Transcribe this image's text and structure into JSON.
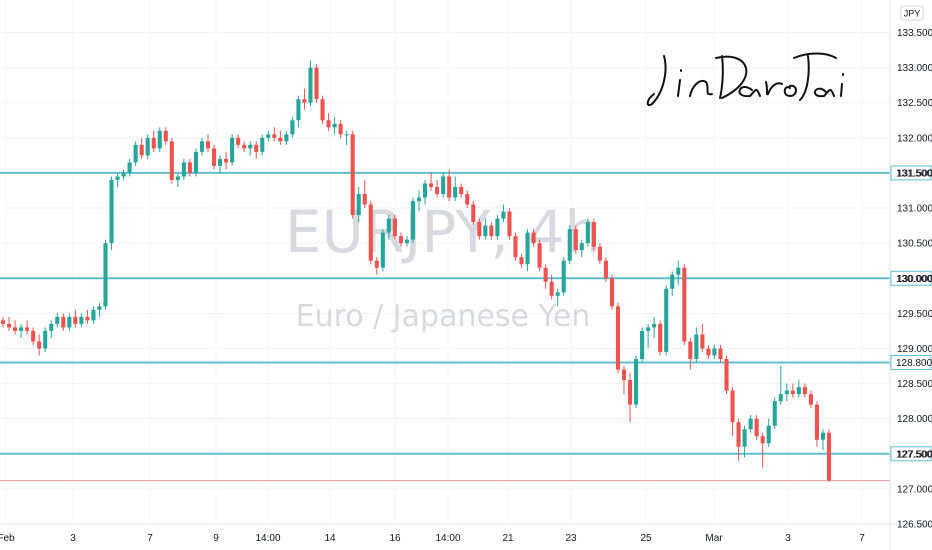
{
  "chart_data": {
    "type": "candlestick",
    "watermark_symbol": "EURJPY, 4h",
    "watermark_name": "Euro / Japanese Yen",
    "signature": "JinDao Tai",
    "currency": "JPY",
    "ylim": [
      126.5,
      133.55
    ],
    "y_ticks": [
      "133.500",
      "133.000",
      "132.500",
      "132.000",
      "131.500",
      "131.000",
      "130.500",
      "130.000",
      "129.500",
      "129.000",
      "128.500",
      "128.000",
      "127.500",
      "127.000",
      "126.500"
    ],
    "x_ticks": [
      "Feb",
      "3",
      "7",
      "9",
      "14:00",
      "14",
      "16",
      "14:00",
      "21",
      "23",
      "25",
      "Mar",
      "3",
      "7"
    ],
    "horizontal_levels": [
      {
        "label": "131.500",
        "value": 131.5
      },
      {
        "label": "130.000",
        "value": 130.0
      },
      {
        "label": "128.800",
        "value": 128.8
      },
      {
        "label": "127.500",
        "value": 127.5
      }
    ],
    "last_price_line": 127.12,
    "up_color": "#26a69a",
    "down_color": "#ef5350",
    "level_color": "#5ebfd0",
    "candles": [
      [
        129.4,
        129.45,
        129.3,
        129.35
      ],
      [
        129.35,
        129.45,
        129.25,
        129.3
      ],
      [
        129.3,
        129.4,
        129.2,
        129.25
      ],
      [
        129.25,
        129.35,
        129.15,
        129.3
      ],
      [
        129.3,
        129.4,
        129.2,
        129.25
      ],
      [
        129.25,
        129.3,
        129.05,
        129.1
      ],
      [
        129.1,
        129.2,
        128.9,
        129.0
      ],
      [
        129.0,
        129.3,
        128.95,
        129.25
      ],
      [
        129.25,
        129.4,
        129.15,
        129.35
      ],
      [
        129.35,
        129.5,
        129.3,
        129.45
      ],
      [
        129.45,
        129.5,
        129.25,
        129.3
      ],
      [
        129.3,
        129.5,
        129.25,
        129.45
      ],
      [
        129.45,
        129.55,
        129.3,
        129.35
      ],
      [
        129.35,
        129.5,
        129.3,
        129.45
      ],
      [
        129.45,
        129.55,
        129.35,
        129.4
      ],
      [
        129.4,
        129.6,
        129.35,
        129.55
      ],
      [
        129.55,
        129.65,
        129.45,
        129.6
      ],
      [
        129.6,
        130.55,
        129.55,
        130.5
      ],
      [
        130.5,
        131.45,
        130.4,
        131.4
      ],
      [
        131.4,
        131.5,
        131.3,
        131.45
      ],
      [
        131.45,
        131.55,
        131.4,
        131.5
      ],
      [
        131.5,
        131.7,
        131.45,
        131.65
      ],
      [
        131.65,
        131.95,
        131.6,
        131.9
      ],
      [
        131.9,
        132.0,
        131.7,
        131.75
      ],
      [
        131.75,
        132.05,
        131.7,
        132.0
      ],
      [
        132.0,
        132.1,
        131.8,
        131.85
      ],
      [
        131.85,
        132.15,
        131.8,
        132.1
      ],
      [
        132.1,
        132.15,
        131.9,
        131.95
      ],
      [
        131.95,
        132.0,
        131.35,
        131.4
      ],
      [
        131.4,
        131.5,
        131.3,
        131.45
      ],
      [
        131.45,
        131.7,
        131.4,
        131.65
      ],
      [
        131.65,
        131.7,
        131.45,
        131.5
      ],
      [
        131.5,
        131.85,
        131.45,
        131.8
      ],
      [
        131.8,
        132.0,
        131.75,
        131.95
      ],
      [
        131.95,
        132.05,
        131.8,
        131.85
      ],
      [
        131.85,
        131.9,
        131.55,
        131.6
      ],
      [
        131.6,
        131.75,
        131.5,
        131.7
      ],
      [
        131.7,
        131.8,
        131.55,
        131.65
      ],
      [
        131.65,
        132.05,
        131.6,
        132.0
      ],
      [
        132.0,
        132.05,
        131.85,
        131.9
      ],
      [
        131.9,
        131.95,
        131.8,
        131.85
      ],
      [
        131.85,
        131.95,
        131.75,
        131.9
      ],
      [
        131.9,
        131.95,
        131.7,
        131.8
      ],
      [
        131.8,
        132.05,
        131.75,
        132.0
      ],
      [
        132.0,
        132.1,
        131.95,
        132.05
      ],
      [
        132.05,
        132.15,
        131.95,
        132.0
      ],
      [
        132.0,
        132.1,
        131.9,
        131.95
      ],
      [
        131.95,
        132.1,
        131.9,
        132.05
      ],
      [
        132.05,
        132.3,
        132.0,
        132.25
      ],
      [
        132.25,
        132.6,
        132.15,
        132.55
      ],
      [
        132.55,
        132.7,
        132.4,
        132.5
      ],
      [
        132.5,
        133.1,
        132.45,
        133.0
      ],
      [
        133.0,
        133.05,
        132.5,
        132.55
      ],
      [
        132.55,
        132.6,
        132.2,
        132.25
      ],
      [
        132.25,
        132.35,
        132.1,
        132.15
      ],
      [
        132.15,
        132.3,
        132.05,
        132.2
      ],
      [
        132.2,
        132.25,
        132.0,
        132.05
      ],
      [
        132.05,
        132.1,
        131.9,
        132.05
      ],
      [
        132.05,
        132.1,
        130.85,
        130.9
      ],
      [
        130.9,
        131.3,
        130.8,
        131.2
      ],
      [
        131.2,
        131.4,
        131.0,
        131.05
      ],
      [
        131.05,
        131.1,
        130.2,
        130.25
      ],
      [
        130.25,
        130.3,
        130.05,
        130.15
      ],
      [
        130.15,
        130.7,
        130.1,
        130.65
      ],
      [
        130.65,
        130.9,
        130.55,
        130.85
      ],
      [
        130.85,
        130.9,
        130.55,
        130.6
      ],
      [
        130.6,
        130.65,
        130.45,
        130.5
      ],
      [
        130.5,
        130.6,
        130.45,
        130.55
      ],
      [
        130.55,
        131.15,
        130.5,
        131.1
      ],
      [
        131.1,
        131.25,
        130.95,
        131.15
      ],
      [
        131.15,
        131.4,
        131.05,
        131.35
      ],
      [
        131.35,
        131.5,
        131.25,
        131.3
      ],
      [
        131.3,
        131.4,
        131.15,
        131.2
      ],
      [
        131.2,
        131.5,
        131.15,
        131.45
      ],
      [
        131.45,
        131.55,
        131.1,
        131.15
      ],
      [
        131.15,
        131.45,
        131.1,
        131.3
      ],
      [
        131.3,
        131.35,
        131.15,
        131.2
      ],
      [
        131.2,
        131.25,
        131.0,
        131.05
      ],
      [
        131.05,
        131.1,
        130.75,
        130.8
      ],
      [
        130.8,
        130.85,
        130.55,
        130.6
      ],
      [
        130.6,
        130.85,
        130.55,
        130.75
      ],
      [
        130.75,
        130.8,
        130.55,
        130.6
      ],
      [
        130.6,
        130.9,
        130.55,
        130.85
      ],
      [
        130.85,
        131.05,
        130.8,
        130.95
      ],
      [
        130.95,
        131.0,
        130.55,
        130.6
      ],
      [
        130.6,
        130.65,
        130.25,
        130.3
      ],
      [
        130.3,
        130.35,
        130.15,
        130.2
      ],
      [
        130.2,
        130.7,
        130.1,
        130.65
      ],
      [
        130.65,
        130.7,
        130.45,
        130.5
      ],
      [
        130.5,
        130.55,
        130.1,
        130.15
      ],
      [
        130.15,
        130.2,
        129.85,
        129.95
      ],
      [
        129.95,
        130.05,
        129.7,
        129.75
      ],
      [
        129.75,
        129.85,
        129.6,
        129.8
      ],
      [
        129.8,
        130.3,
        129.75,
        130.25
      ],
      [
        130.25,
        130.75,
        130.2,
        130.7
      ],
      [
        130.7,
        130.75,
        130.35,
        130.4
      ],
      [
        130.4,
        130.55,
        130.3,
        130.5
      ],
      [
        130.5,
        130.85,
        130.45,
        130.8
      ],
      [
        130.8,
        130.85,
        130.4,
        130.45
      ],
      [
        130.45,
        130.5,
        130.2,
        130.25
      ],
      [
        130.25,
        130.3,
        129.95,
        130.0
      ],
      [
        130.0,
        130.05,
        129.55,
        129.6
      ],
      [
        129.6,
        129.65,
        128.65,
        128.7
      ],
      [
        128.7,
        128.75,
        128.35,
        128.55
      ],
      [
        128.55,
        128.65,
        127.95,
        128.2
      ],
      [
        128.2,
        128.9,
        128.15,
        128.85
      ],
      [
        128.85,
        129.3,
        128.8,
        129.25
      ],
      [
        129.25,
        129.35,
        129.0,
        129.3
      ],
      [
        129.3,
        129.45,
        129.15,
        129.35
      ],
      [
        129.35,
        129.4,
        128.9,
        128.95
      ],
      [
        128.95,
        129.9,
        128.9,
        129.85
      ],
      [
        129.85,
        130.1,
        129.75,
        130.05
      ],
      [
        130.05,
        130.25,
        129.9,
        130.15
      ],
      [
        130.15,
        130.2,
        129.05,
        129.1
      ],
      [
        129.1,
        129.15,
        128.7,
        128.85
      ],
      [
        128.85,
        129.3,
        128.8,
        129.2
      ],
      [
        129.2,
        129.35,
        128.95,
        129.0
      ],
      [
        129.0,
        129.05,
        128.85,
        128.9
      ],
      [
        128.9,
        129.05,
        128.85,
        129.0
      ],
      [
        129.0,
        129.05,
        128.8,
        128.85
      ],
      [
        128.85,
        128.9,
        128.35,
        128.4
      ],
      [
        128.4,
        128.45,
        127.75,
        127.95
      ],
      [
        127.95,
        128.0,
        127.4,
        127.6
      ],
      [
        127.6,
        127.9,
        127.45,
        127.85
      ],
      [
        127.85,
        128.05,
        127.8,
        128.0
      ],
      [
        128.0,
        128.05,
        127.7,
        127.75
      ],
      [
        127.75,
        127.8,
        127.3,
        127.65
      ],
      [
        127.65,
        128.0,
        127.6,
        127.9
      ],
      [
        127.9,
        128.3,
        127.85,
        128.25
      ],
      [
        128.25,
        128.75,
        128.2,
        128.35
      ],
      [
        128.35,
        128.5,
        128.25,
        128.4
      ],
      [
        128.4,
        128.5,
        128.3,
        128.35
      ],
      [
        128.35,
        128.55,
        128.3,
        128.45
      ],
      [
        128.45,
        128.5,
        128.3,
        128.35
      ],
      [
        128.35,
        128.4,
        128.15,
        128.2
      ],
      [
        128.2,
        128.25,
        127.6,
        127.7
      ],
      [
        127.7,
        127.85,
        127.55,
        127.8
      ],
      [
        127.8,
        127.85,
        127.1,
        127.12
      ]
    ]
  }
}
